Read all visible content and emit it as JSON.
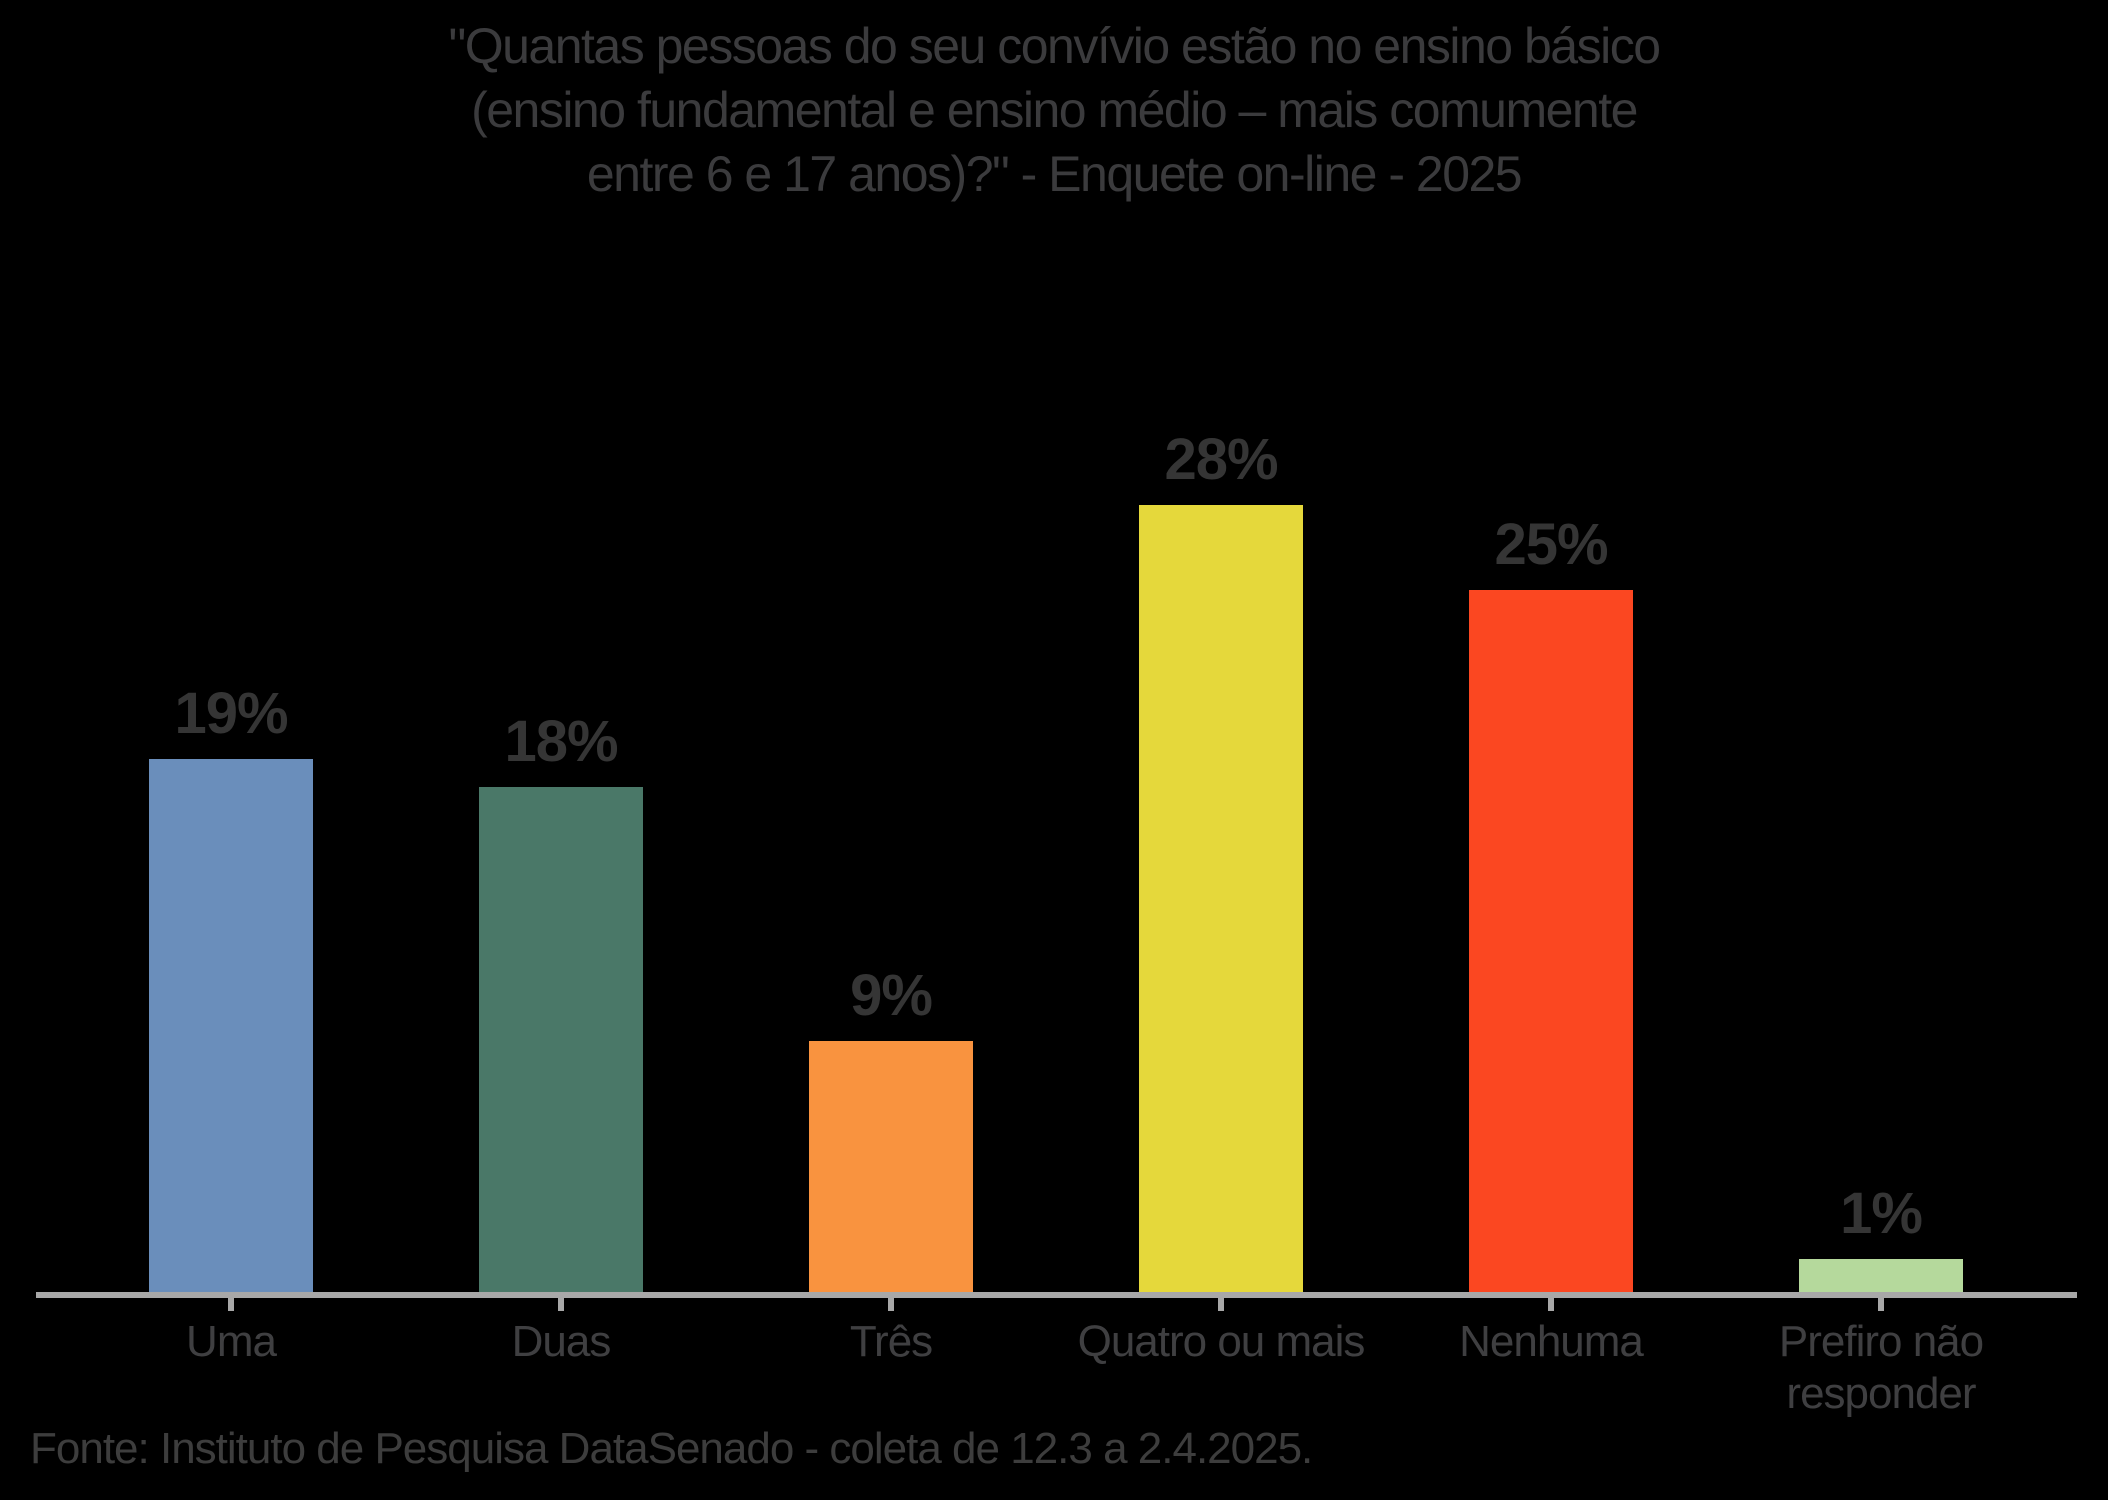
{
  "page": {
    "background_color": "#000000",
    "text_color": "#3b3b3d"
  },
  "title": {
    "line1": "\"Quantas pessoas do seu convívio estão no ensino básico",
    "line2": "(ensino fundamental e ensino médio – mais comumente",
    "line3": "entre 6 e 17 anos)?\" - Enquete on-line - 2025"
  },
  "footer": {
    "source": "Fonte: Instituto de Pesquisa DataSenado - coleta de 12.3 a 2.4.2025."
  },
  "chart_data": {
    "type": "bar",
    "title": "\"Quantas pessoas do seu convívio estão no ensino básico (ensino fundamental e ensino médio – mais comumente entre 6 e 17 anos)?\" - Enquete on-line - 2025",
    "categories": [
      "Uma",
      "Duas",
      "Três",
      "Quatro ou mais",
      "Nenhuma",
      "Prefiro não responder"
    ],
    "values": [
      19,
      18,
      9,
      28,
      25,
      1
    ],
    "data_labels": [
      "19%",
      "18%",
      "9%",
      "28%",
      "25%",
      "1%"
    ],
    "bar_colors": [
      "#6a8ebb",
      "#4a7868",
      "#f9933f",
      "#e5d83b",
      "#fb4721",
      "#b5d99c"
    ],
    "xlabel": "",
    "ylabel": "",
    "ylim": [
      0,
      32
    ],
    "grid": false,
    "legend": false,
    "y_axis_visible": false,
    "axis_color": "#a8a8a8",
    "label_color": "#353535",
    "source": "Fonte: Instituto de Pesquisa DataSenado - coleta de 12.3 a 2.4.2025."
  }
}
